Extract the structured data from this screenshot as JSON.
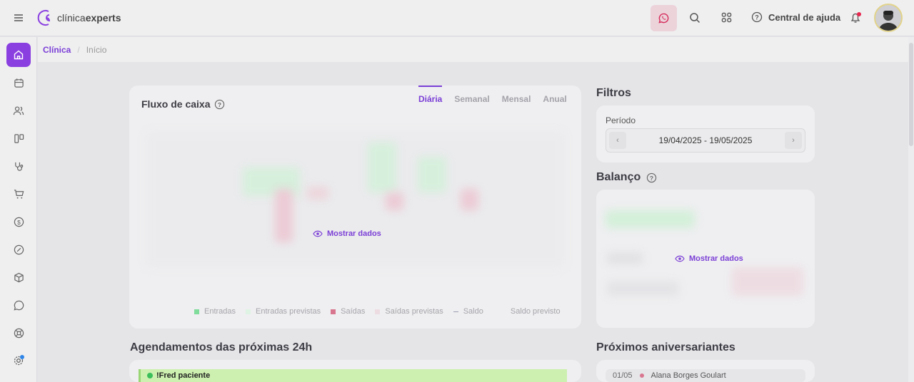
{
  "header": {
    "logo_light": "clínica",
    "logo_bold": "experts",
    "help_label": "Central de ajuda",
    "accent": "#8a3fe0"
  },
  "breadcrumb": {
    "root": "Clínica",
    "separator": "/",
    "current": "Início"
  },
  "sidebar": {
    "items": [
      "home-icon",
      "calendar-icon",
      "users-icon",
      "kanban-icon",
      "stethoscope-icon",
      "cart-icon",
      "dollar-icon",
      "discount-icon",
      "box-icon",
      "heart-chat-icon",
      "lifebuoy-icon",
      "gear-icon"
    ]
  },
  "cashflow": {
    "title": "Fluxo de caixa",
    "tabs": [
      "Diária",
      "Semanal",
      "Mensal",
      "Anual"
    ],
    "active_tab": "Diária",
    "show_data": "Mostrar dados",
    "legend": [
      {
        "label": "Entradas",
        "color": "#7fdc9a"
      },
      {
        "label": "Entradas previstas",
        "color": "#dff3e4"
      },
      {
        "label": "Saídas",
        "color": "#d9768f"
      },
      {
        "label": "Saídas previstas",
        "color": "#eddde2"
      },
      {
        "label": "Saldo",
        "color": "#9aa0b0"
      },
      {
        "label": "Saldo previsto",
        "color": "#efeff1"
      }
    ]
  },
  "filters": {
    "title": "Filtros",
    "period_label": "Período",
    "period_value": "19/04/2025 - 19/05/2025",
    "prev": "‹",
    "next": "›"
  },
  "balance": {
    "title": "Balanço",
    "show_data": "Mostrar dados"
  },
  "appointments": {
    "title": "Agendamentos das próximas 24h",
    "items": [
      {
        "name": "!Fred paciente"
      }
    ]
  },
  "birthdays": {
    "title": "Próximos aniversariantes",
    "items": [
      {
        "date": "01/05",
        "name": "Alana Borges Goulart"
      }
    ]
  }
}
